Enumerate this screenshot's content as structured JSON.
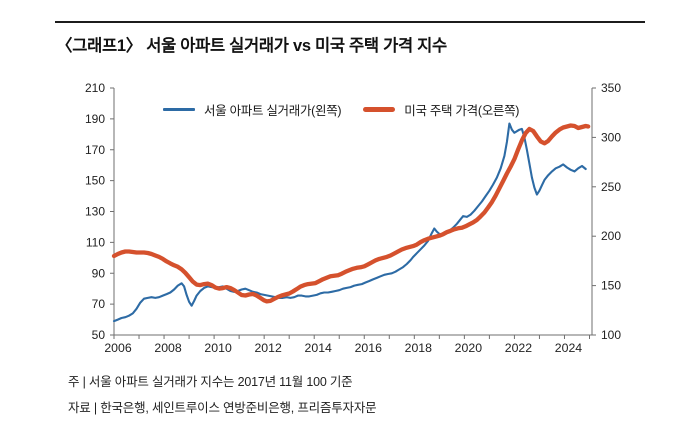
{
  "title": "〈그래프1〉 서울 아파트 실거래가 vs 미국 주택 가격 지수",
  "legend": {
    "seoul_label": "서울 아파트 실거래가(왼쪽)",
    "us_label": "미국 주택 가격(오른쪽)"
  },
  "notes": {
    "note1": "주 | 서울 아파트 실거래가 지수는 2017년 11월 100 기준",
    "note2": "자료 | 한국은행, 세인트루이스 연방준비은행, 프리즘투자자문"
  },
  "colors": {
    "seoul_line": "#2d6ba5",
    "us_line": "#d5512d",
    "axis": "#6f6f6f",
    "tick_label": "#222222"
  },
  "chart_data": {
    "type": "line",
    "title": "〈그래프1〉 서울 아파트 실거래가 vs 미국 주택 가격 지수",
    "grid": false,
    "legend_position": "top",
    "x_axis": {
      "range": [
        2006,
        2025.1
      ],
      "label_years": [
        2006,
        2008,
        2010,
        2012,
        2014,
        2016,
        2018,
        2020,
        2022,
        2024
      ],
      "minor_tick_step": 1
    },
    "y_left": {
      "range": [
        50,
        210
      ],
      "ticks": [
        50,
        70,
        90,
        110,
        130,
        150,
        170,
        190,
        210
      ]
    },
    "y_right": {
      "range": [
        100,
        350
      ],
      "ticks": [
        100,
        150,
        200,
        250,
        300,
        350
      ]
    },
    "series": [
      {
        "name": "서울 아파트 실거래가(왼쪽)",
        "axis": "left",
        "color": "#2d6ba5",
        "width": 2.1,
        "points": [
          [
            2006.0,
            59
          ],
          [
            2006.15,
            60
          ],
          [
            2006.3,
            61
          ],
          [
            2006.45,
            61.5
          ],
          [
            2006.6,
            62.5
          ],
          [
            2006.75,
            64
          ],
          [
            2006.9,
            67
          ],
          [
            2007.05,
            71
          ],
          [
            2007.2,
            73.5
          ],
          [
            2007.35,
            74
          ],
          [
            2007.5,
            74.5
          ],
          [
            2007.65,
            74
          ],
          [
            2007.8,
            74.5
          ],
          [
            2007.95,
            75.5
          ],
          [
            2008.1,
            76.5
          ],
          [
            2008.25,
            77.5
          ],
          [
            2008.4,
            79.5
          ],
          [
            2008.55,
            82
          ],
          [
            2008.7,
            83.5
          ],
          [
            2008.8,
            81.5
          ],
          [
            2008.9,
            76
          ],
          [
            2009.0,
            71.5
          ],
          [
            2009.1,
            69
          ],
          [
            2009.2,
            72
          ],
          [
            2009.3,
            75.5
          ],
          [
            2009.45,
            78.5
          ],
          [
            2009.6,
            80.5
          ],
          [
            2009.75,
            81.5
          ],
          [
            2009.9,
            81
          ],
          [
            2010.05,
            80.5
          ],
          [
            2010.2,
            81
          ],
          [
            2010.35,
            81.5
          ],
          [
            2010.5,
            80
          ],
          [
            2010.65,
            78.5
          ],
          [
            2010.8,
            78
          ],
          [
            2010.95,
            78.5
          ],
          [
            2011.1,
            79.5
          ],
          [
            2011.25,
            80
          ],
          [
            2011.4,
            79
          ],
          [
            2011.55,
            78
          ],
          [
            2011.7,
            77.5
          ],
          [
            2011.85,
            76.5
          ],
          [
            2012.0,
            76
          ],
          [
            2012.15,
            75.5
          ],
          [
            2012.3,
            75
          ],
          [
            2012.45,
            74.5
          ],
          [
            2012.6,
            74
          ],
          [
            2012.75,
            74
          ],
          [
            2012.9,
            74.5
          ],
          [
            2013.05,
            74
          ],
          [
            2013.2,
            74.5
          ],
          [
            2013.35,
            75.5
          ],
          [
            2013.5,
            75.5
          ],
          [
            2013.65,
            75
          ],
          [
            2013.8,
            75
          ],
          [
            2013.95,
            75.5
          ],
          [
            2014.1,
            76
          ],
          [
            2014.25,
            77
          ],
          [
            2014.4,
            77.5
          ],
          [
            2014.55,
            77.5
          ],
          [
            2014.7,
            78
          ],
          [
            2014.85,
            78.5
          ],
          [
            2015.0,
            79
          ],
          [
            2015.15,
            80
          ],
          [
            2015.3,
            80.5
          ],
          [
            2015.45,
            81
          ],
          [
            2015.6,
            82
          ],
          [
            2015.75,
            82.5
          ],
          [
            2015.9,
            83
          ],
          [
            2016.05,
            84
          ],
          [
            2016.2,
            85
          ],
          [
            2016.35,
            86
          ],
          [
            2016.5,
            87
          ],
          [
            2016.65,
            88
          ],
          [
            2016.8,
            89
          ],
          [
            2016.95,
            89.5
          ],
          [
            2017.1,
            90
          ],
          [
            2017.25,
            91
          ],
          [
            2017.4,
            92.5
          ],
          [
            2017.55,
            94
          ],
          [
            2017.7,
            96
          ],
          [
            2017.85,
            98.5
          ],
          [
            2017.95,
            100.5
          ],
          [
            2018.1,
            103
          ],
          [
            2018.25,
            105.5
          ],
          [
            2018.4,
            108
          ],
          [
            2018.55,
            111
          ],
          [
            2018.7,
            116
          ],
          [
            2018.8,
            119
          ],
          [
            2018.9,
            117
          ],
          [
            2019.0,
            115.5
          ],
          [
            2019.1,
            115
          ],
          [
            2019.25,
            116
          ],
          [
            2019.4,
            117.5
          ],
          [
            2019.55,
            119.5
          ],
          [
            2019.7,
            122
          ],
          [
            2019.85,
            125
          ],
          [
            2019.95,
            127
          ],
          [
            2020.1,
            126.5
          ],
          [
            2020.25,
            128
          ],
          [
            2020.4,
            130.5
          ],
          [
            2020.55,
            133.5
          ],
          [
            2020.7,
            136.5
          ],
          [
            2020.85,
            140
          ],
          [
            2021.0,
            143.5
          ],
          [
            2021.15,
            147.5
          ],
          [
            2021.3,
            152
          ],
          [
            2021.45,
            158
          ],
          [
            2021.6,
            166
          ],
          [
            2021.7,
            175
          ],
          [
            2021.8,
            187
          ],
          [
            2021.9,
            183
          ],
          [
            2022.0,
            181
          ],
          [
            2022.1,
            182
          ],
          [
            2022.2,
            183
          ],
          [
            2022.3,
            183.5
          ],
          [
            2022.4,
            178
          ],
          [
            2022.5,
            170
          ],
          [
            2022.6,
            161
          ],
          [
            2022.7,
            152
          ],
          [
            2022.8,
            145.5
          ],
          [
            2022.9,
            141
          ],
          [
            2023.0,
            143.5
          ],
          [
            2023.1,
            147
          ],
          [
            2023.2,
            150.5
          ],
          [
            2023.35,
            153.5
          ],
          [
            2023.5,
            156
          ],
          [
            2023.65,
            158
          ],
          [
            2023.8,
            159
          ],
          [
            2023.95,
            160.5
          ],
          [
            2024.1,
            158.5
          ],
          [
            2024.25,
            157
          ],
          [
            2024.4,
            156
          ],
          [
            2024.55,
            158
          ],
          [
            2024.7,
            159.5
          ],
          [
            2024.85,
            157.5
          ]
        ]
      },
      {
        "name": "미국 주택 가격(오른쪽)",
        "axis": "right",
        "color": "#d5512d",
        "width": 4.3,
        "points": [
          [
            2006.0,
            180
          ],
          [
            2006.15,
            182
          ],
          [
            2006.3,
            183.5
          ],
          [
            2006.45,
            184.5
          ],
          [
            2006.6,
            184.5
          ],
          [
            2006.75,
            184
          ],
          [
            2006.9,
            183.5
          ],
          [
            2007.05,
            183.5
          ],
          [
            2007.2,
            183.5
          ],
          [
            2007.35,
            183
          ],
          [
            2007.5,
            182
          ],
          [
            2007.65,
            180.5
          ],
          [
            2007.8,
            179
          ],
          [
            2007.95,
            177
          ],
          [
            2008.1,
            174.5
          ],
          [
            2008.25,
            172.5
          ],
          [
            2008.4,
            170.5
          ],
          [
            2008.55,
            169
          ],
          [
            2008.7,
            166.5
          ],
          [
            2008.85,
            163
          ],
          [
            2009.0,
            158.5
          ],
          [
            2009.15,
            154
          ],
          [
            2009.3,
            151
          ],
          [
            2009.45,
            150.5
          ],
          [
            2009.6,
            151.5
          ],
          [
            2009.75,
            152
          ],
          [
            2009.9,
            150.5
          ],
          [
            2010.05,
            148
          ],
          [
            2010.2,
            147
          ],
          [
            2010.35,
            147.5
          ],
          [
            2010.5,
            148.5
          ],
          [
            2010.65,
            147.5
          ],
          [
            2010.8,
            145.5
          ],
          [
            2010.95,
            143
          ],
          [
            2011.1,
            140.5
          ],
          [
            2011.25,
            140
          ],
          [
            2011.4,
            141
          ],
          [
            2011.55,
            141.5
          ],
          [
            2011.7,
            140
          ],
          [
            2011.85,
            137.5
          ],
          [
            2012.0,
            135
          ],
          [
            2012.1,
            134
          ],
          [
            2012.25,
            134.5
          ],
          [
            2012.4,
            136.5
          ],
          [
            2012.55,
            138.5
          ],
          [
            2012.7,
            140
          ],
          [
            2012.85,
            141
          ],
          [
            2013.0,
            142
          ],
          [
            2013.15,
            144
          ],
          [
            2013.3,
            146.5
          ],
          [
            2013.45,
            149
          ],
          [
            2013.6,
            150.5
          ],
          [
            2013.75,
            151.5
          ],
          [
            2013.9,
            152
          ],
          [
            2014.05,
            152.5
          ],
          [
            2014.2,
            154.5
          ],
          [
            2014.35,
            156.5
          ],
          [
            2014.5,
            158
          ],
          [
            2014.65,
            159.5
          ],
          [
            2014.8,
            160
          ],
          [
            2014.95,
            160.5
          ],
          [
            2015.1,
            162
          ],
          [
            2015.25,
            164
          ],
          [
            2015.4,
            165.5
          ],
          [
            2015.55,
            167
          ],
          [
            2015.7,
            168
          ],
          [
            2015.85,
            168.5
          ],
          [
            2016.0,
            169.5
          ],
          [
            2016.15,
            171.5
          ],
          [
            2016.3,
            173.5
          ],
          [
            2016.45,
            175.5
          ],
          [
            2016.6,
            177
          ],
          [
            2016.75,
            178
          ],
          [
            2016.9,
            179
          ],
          [
            2017.05,
            180.5
          ],
          [
            2017.2,
            182.5
          ],
          [
            2017.35,
            184.5
          ],
          [
            2017.5,
            186.5
          ],
          [
            2017.65,
            188
          ],
          [
            2017.8,
            189
          ],
          [
            2017.95,
            190
          ],
          [
            2018.1,
            191.5
          ],
          [
            2018.25,
            194
          ],
          [
            2018.4,
            196
          ],
          [
            2018.55,
            197.5
          ],
          [
            2018.7,
            198.5
          ],
          [
            2018.85,
            199.5
          ],
          [
            2019.0,
            200.5
          ],
          [
            2019.15,
            202
          ],
          [
            2019.3,
            204
          ],
          [
            2019.45,
            205.5
          ],
          [
            2019.6,
            207
          ],
          [
            2019.75,
            208
          ],
          [
            2019.9,
            208.5
          ],
          [
            2020.05,
            210
          ],
          [
            2020.2,
            212
          ],
          [
            2020.35,
            214
          ],
          [
            2020.5,
            216.5
          ],
          [
            2020.65,
            220
          ],
          [
            2020.8,
            224
          ],
          [
            2020.95,
            229
          ],
          [
            2021.1,
            234.5
          ],
          [
            2021.25,
            241
          ],
          [
            2021.4,
            248.5
          ],
          [
            2021.55,
            256
          ],
          [
            2021.7,
            263.5
          ],
          [
            2021.85,
            270.5
          ],
          [
            2022.0,
            278
          ],
          [
            2022.15,
            288
          ],
          [
            2022.3,
            297
          ],
          [
            2022.45,
            304.5
          ],
          [
            2022.6,
            308.5
          ],
          [
            2022.75,
            306.5
          ],
          [
            2022.9,
            301
          ],
          [
            2023.05,
            296
          ],
          [
            2023.2,
            294
          ],
          [
            2023.35,
            296.5
          ],
          [
            2023.5,
            301
          ],
          [
            2023.65,
            305
          ],
          [
            2023.8,
            308
          ],
          [
            2023.95,
            310
          ],
          [
            2024.1,
            311
          ],
          [
            2024.25,
            312
          ],
          [
            2024.4,
            311.5
          ],
          [
            2024.55,
            309.5
          ],
          [
            2024.7,
            310.5
          ],
          [
            2024.85,
            311.5
          ],
          [
            2024.95,
            311
          ]
        ]
      }
    ]
  }
}
